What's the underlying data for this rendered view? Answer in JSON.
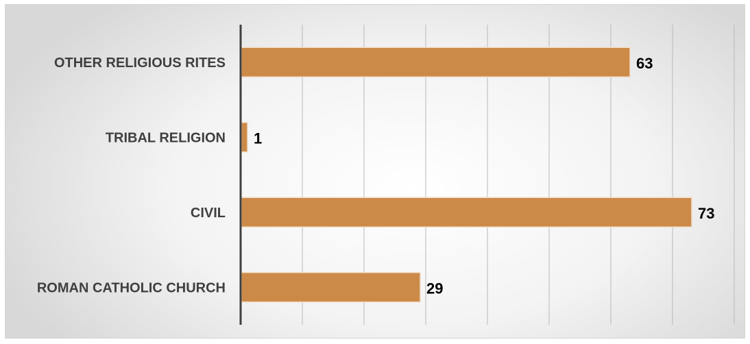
{
  "chart_data": {
    "type": "bar",
    "orientation": "horizontal",
    "categories": [
      "OTHER RELIGIOUS RITES",
      "TRIBAL RELIGION",
      "CIVIL",
      "ROMAN CATHOLIC CHURCH"
    ],
    "values": [
      63,
      1,
      73,
      29
    ],
    "data_labels": [
      "63",
      "1",
      "73",
      "29"
    ],
    "xlim": [
      0,
      80
    ],
    "grid": true,
    "legend": "none",
    "colors": {
      "bar": "#cc8a49",
      "bar_edge": "#f2dcc6",
      "axis": "#404040",
      "grid": "#b8b8b8",
      "label": "#3f3f3f",
      "data_label": "#000000"
    }
  }
}
